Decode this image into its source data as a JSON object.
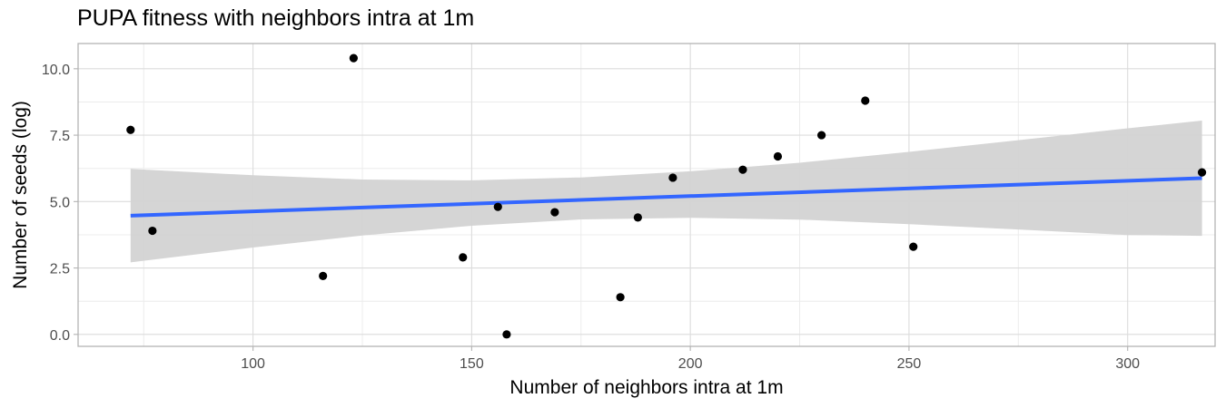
{
  "chart_data": {
    "type": "scatter",
    "title": "PUPA fitness with neighbors intra at 1m",
    "xlabel": "Number of neighbors intra at 1m",
    "ylabel": "Number of seeds (log)",
    "xlim": [
      60,
      320
    ],
    "ylim": [
      -0.45,
      10.95
    ],
    "x_ticks": [
      100,
      150,
      200,
      250,
      300
    ],
    "x_tick_labels": [
      "100",
      "150",
      "200",
      "250",
      "300"
    ],
    "y_ticks": [
      0,
      2.5,
      5,
      7.5,
      10
    ],
    "y_tick_labels": [
      "0.0",
      "2.5",
      "5.0",
      "7.5",
      "10.0"
    ],
    "grid": true,
    "points": [
      {
        "x": 72,
        "y": 7.7
      },
      {
        "x": 77,
        "y": 3.9
      },
      {
        "x": 116,
        "y": 2.2
      },
      {
        "x": 123,
        "y": 10.4
      },
      {
        "x": 148,
        "y": 2.9
      },
      {
        "x": 156,
        "y": 4.8
      },
      {
        "x": 158,
        "y": 0.0
      },
      {
        "x": 169,
        "y": 4.6
      },
      {
        "x": 184,
        "y": 1.4
      },
      {
        "x": 188,
        "y": 4.4
      },
      {
        "x": 196,
        "y": 5.9
      },
      {
        "x": 212,
        "y": 6.2
      },
      {
        "x": 220,
        "y": 6.7
      },
      {
        "x": 230,
        "y": 7.5
      },
      {
        "x": 240,
        "y": 8.8
      },
      {
        "x": 251,
        "y": 3.3
      },
      {
        "x": 317,
        "y": 6.1
      }
    ],
    "fit_line": {
      "x": [
        72,
        317
      ],
      "y": [
        4.47,
        5.88
      ]
    },
    "confidence_band": {
      "x": [
        72,
        100,
        125,
        150,
        175,
        200,
        225,
        250,
        275,
        300,
        317
      ],
      "upper": [
        6.23,
        5.99,
        5.83,
        5.8,
        5.91,
        6.14,
        6.46,
        6.87,
        7.31,
        7.76,
        8.05
      ],
      "lower": [
        2.71,
        3.27,
        3.72,
        4.09,
        4.33,
        4.39,
        4.32,
        4.15,
        3.95,
        3.74,
        3.71
      ]
    },
    "colors": {
      "point": "#000000",
      "line": "#3366ff",
      "band": "#d3d3d3",
      "grid_major": "#dcdcdc",
      "grid_minor": "#ececec",
      "panel_border": "#b3b3b3"
    }
  }
}
